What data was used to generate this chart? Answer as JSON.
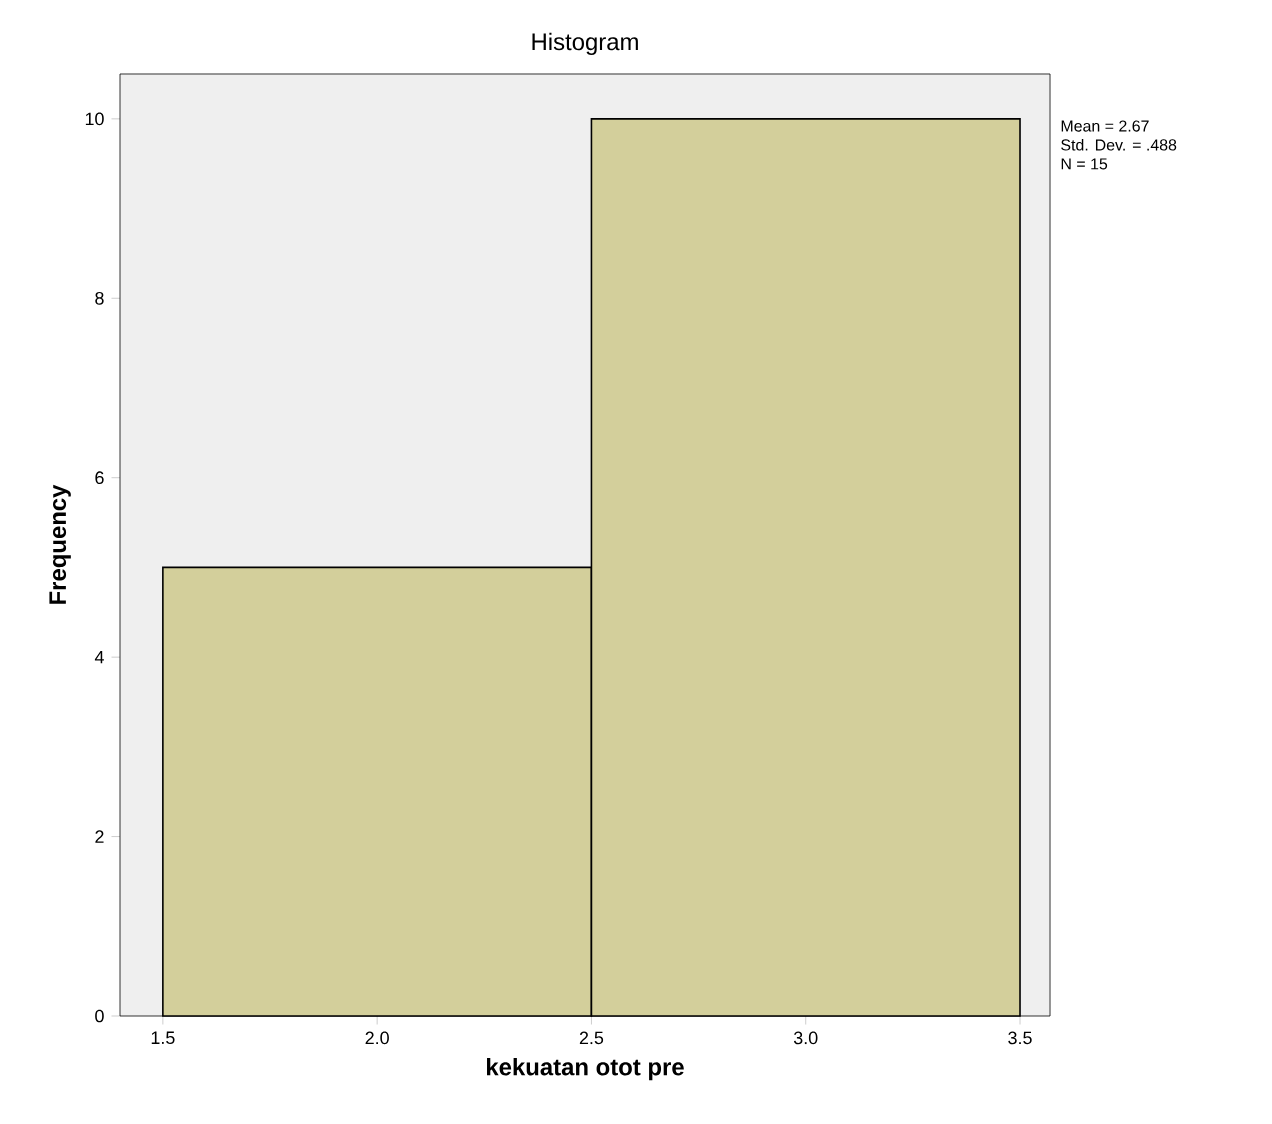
{
  "chart_data": {
    "type": "histogram",
    "title": "Histogram",
    "xlabel": "kekuatan otot pre",
    "ylabel": "Frequency",
    "bins": [
      1.5,
      2.5,
      3.5
    ],
    "values": [
      5,
      10
    ],
    "color": "#d3cf9b",
    "xlim": [
      1.4,
      3.57
    ],
    "ylim": [
      0,
      10.5
    ],
    "xticks": [
      {
        "value": 1.5,
        "label": "1.5"
      },
      {
        "value": 2.0,
        "label": "2.0"
      },
      {
        "value": 2.5,
        "label": "2.5"
      },
      {
        "value": 3.0,
        "label": "3.0"
      },
      {
        "value": 3.5,
        "label": "3.5"
      }
    ],
    "yticks": [
      0,
      2,
      4,
      6,
      8,
      10
    ],
    "annotations": [
      "Mean = 2.67",
      "Std. Dev. = .488",
      "N = 15"
    ]
  }
}
